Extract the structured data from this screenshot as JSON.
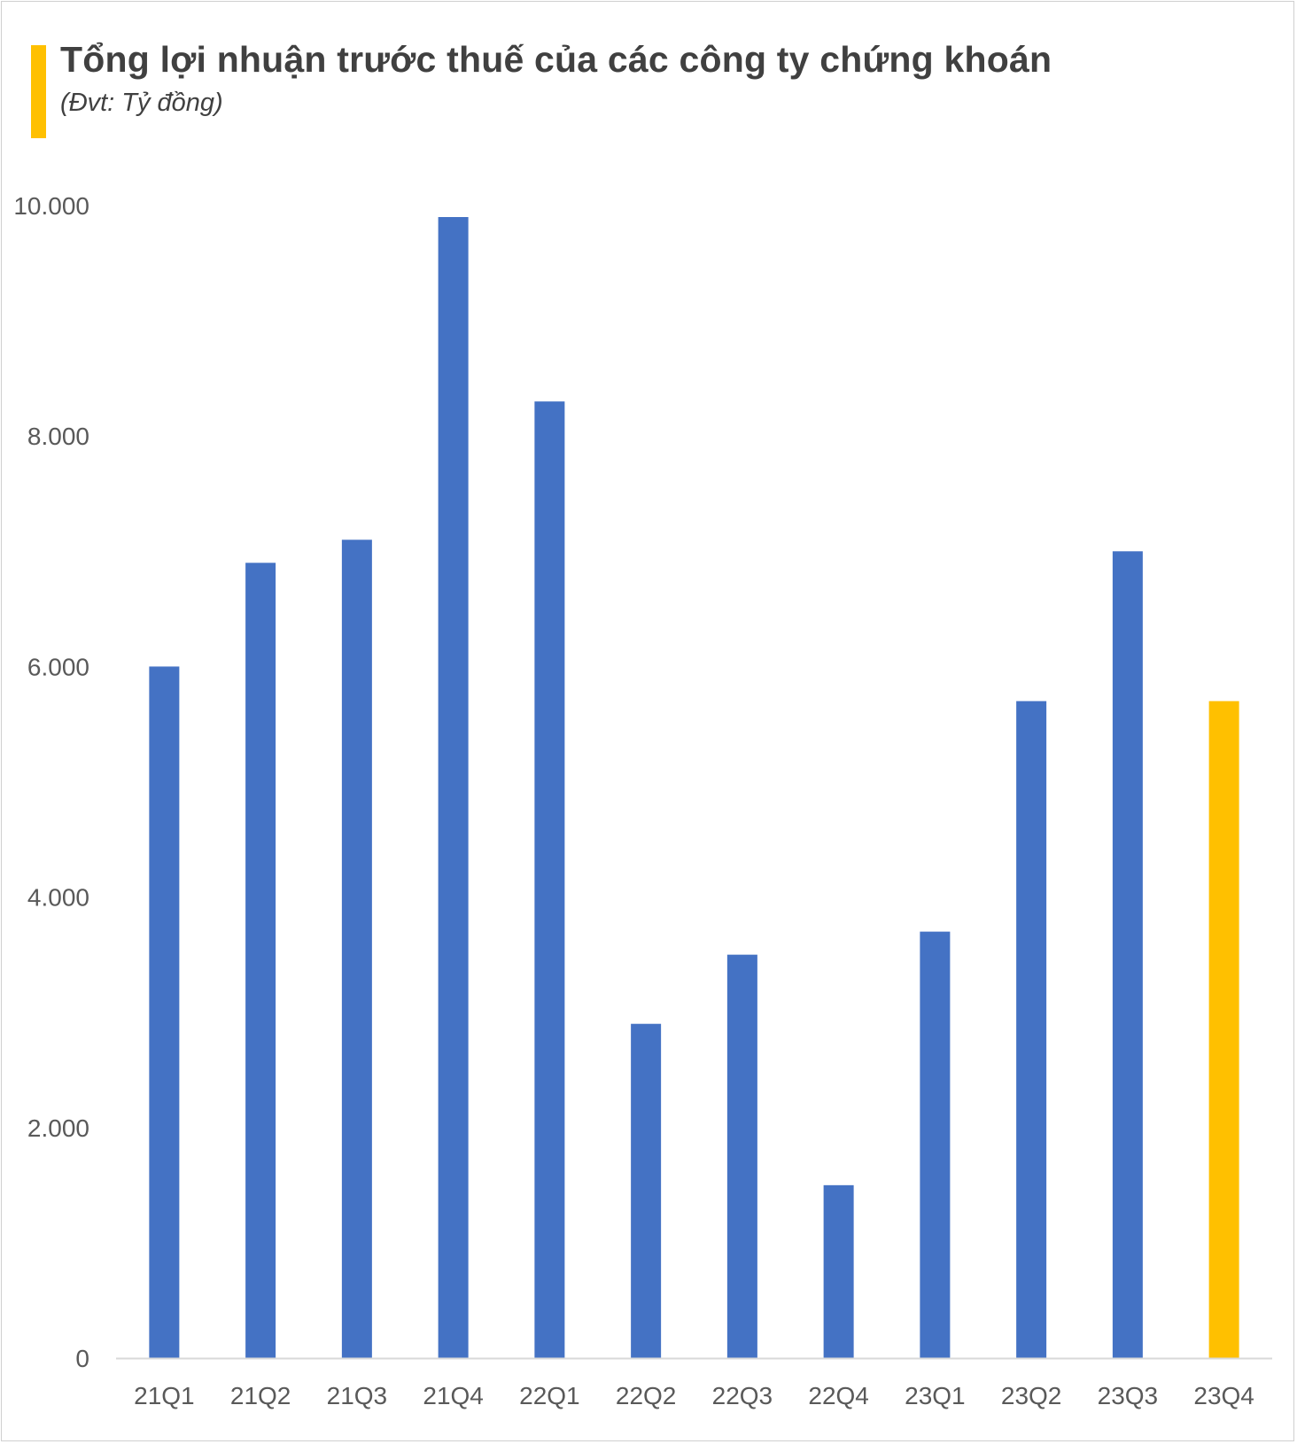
{
  "title": "Tổng lợi nhuận trước thuế của các công ty chứng khoán",
  "subtitle": "(Đvt: Tỷ đồng)",
  "colors": {
    "bar": "#4472C4",
    "highlight": "#FFC000",
    "accent": "#FFC000",
    "axis": "#d9d9d9",
    "text": "#595959"
  },
  "chart_data": {
    "type": "bar",
    "title": "Tổng lợi nhuận trước thuế của các công ty chứng khoán",
    "subtitle": "(Đvt: Tỷ đồng)",
    "xlabel": "",
    "ylabel": "",
    "categories": [
      "21Q1",
      "21Q2",
      "21Q3",
      "21Q4",
      "22Q1",
      "22Q2",
      "22Q3",
      "22Q4",
      "23Q1",
      "23Q2",
      "23Q3",
      "23Q4"
    ],
    "values": [
      6000,
      6900,
      7100,
      9900,
      8300,
      2900,
      3500,
      1500,
      3700,
      5700,
      7000,
      5700
    ],
    "highlight_index": 11,
    "ylim": [
      0,
      10000
    ],
    "yticks": [
      0,
      2000,
      4000,
      6000,
      8000,
      10000
    ],
    "ytick_labels": [
      "0",
      "2.000",
      "4.000",
      "6.000",
      "8.000",
      "10.000"
    ],
    "grid": false,
    "legend": "none"
  }
}
